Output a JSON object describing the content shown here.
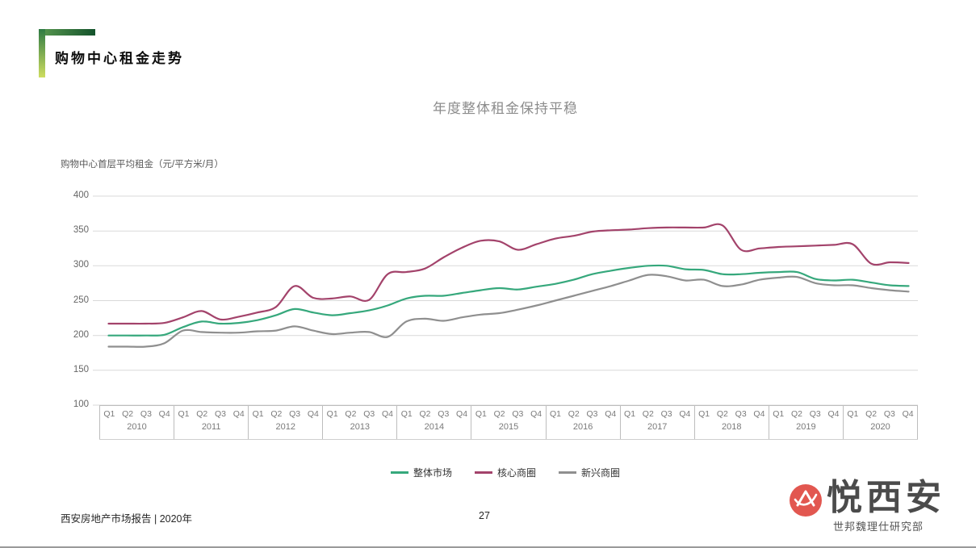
{
  "header": {
    "title": "购物中心租金走势"
  },
  "footer": {
    "report_label": "西安房地产市场报告 | 2020年",
    "page_number": "27"
  },
  "logo": {
    "brand_text": "悦西安",
    "sub_text": "世邦魏理仕研究部",
    "icon": "mountain-in-red-circle",
    "red": "#e25750"
  },
  "colors": {
    "accent_dark_green": "#14532c",
    "accent_light_green": "#cedd60",
    "gridline": "#d9d9d9",
    "axis_border": "#bdbdbd"
  },
  "chart_data": {
    "type": "line",
    "title": "年度整体租金保持平稳",
    "ylabel": "购物中心首层平均租金（元/平方米/月）",
    "xlabel": "",
    "ylim": [
      100,
      400
    ],
    "yticks": [
      100,
      150,
      200,
      250,
      300,
      350,
      400
    ],
    "grid": true,
    "legend_position": "bottom",
    "years": [
      "2010",
      "2011",
      "2012",
      "2013",
      "2014",
      "2015",
      "2016",
      "2017",
      "2018",
      "2019",
      "2020"
    ],
    "quarter_labels": [
      "Q1",
      "Q2",
      "Q3",
      "Q4"
    ],
    "series": [
      {
        "name": "整体市场",
        "color": "#36a87c",
        "values": [
          200,
          200,
          200,
          201,
          212,
          220,
          217,
          218,
          222,
          229,
          238,
          233,
          229,
          232,
          236,
          243,
          253,
          257,
          257,
          261,
          265,
          268,
          266,
          270,
          274,
          280,
          288,
          293,
          297,
          300,
          300,
          295,
          294,
          288,
          288,
          290,
          291,
          291,
          281,
          279,
          280,
          276,
          272,
          271
        ]
      },
      {
        "name": "核心商圈",
        "color": "#a3436b",
        "values": [
          217,
          217,
          217,
          218,
          226,
          235,
          223,
          227,
          233,
          241,
          271,
          254,
          253,
          256,
          251,
          288,
          291,
          296,
          312,
          326,
          336,
          335,
          323,
          331,
          339,
          343,
          349,
          351,
          352,
          354,
          355,
          355,
          355,
          358,
          323,
          325,
          327,
          328,
          329,
          330,
          331,
          303,
          305,
          304
        ]
      },
      {
        "name": "新兴商圈",
        "color": "#8f8f8f",
        "values": [
          184,
          184,
          184,
          189,
          207,
          205,
          204,
          204,
          206,
          207,
          213,
          207,
          202,
          204,
          205,
          198,
          220,
          224,
          221,
          226,
          230,
          232,
          237,
          243,
          250,
          257,
          264,
          271,
          279,
          287,
          285,
          279,
          280,
          271,
          273,
          280,
          283,
          284,
          275,
          272,
          272,
          268,
          265,
          263
        ]
      }
    ]
  }
}
